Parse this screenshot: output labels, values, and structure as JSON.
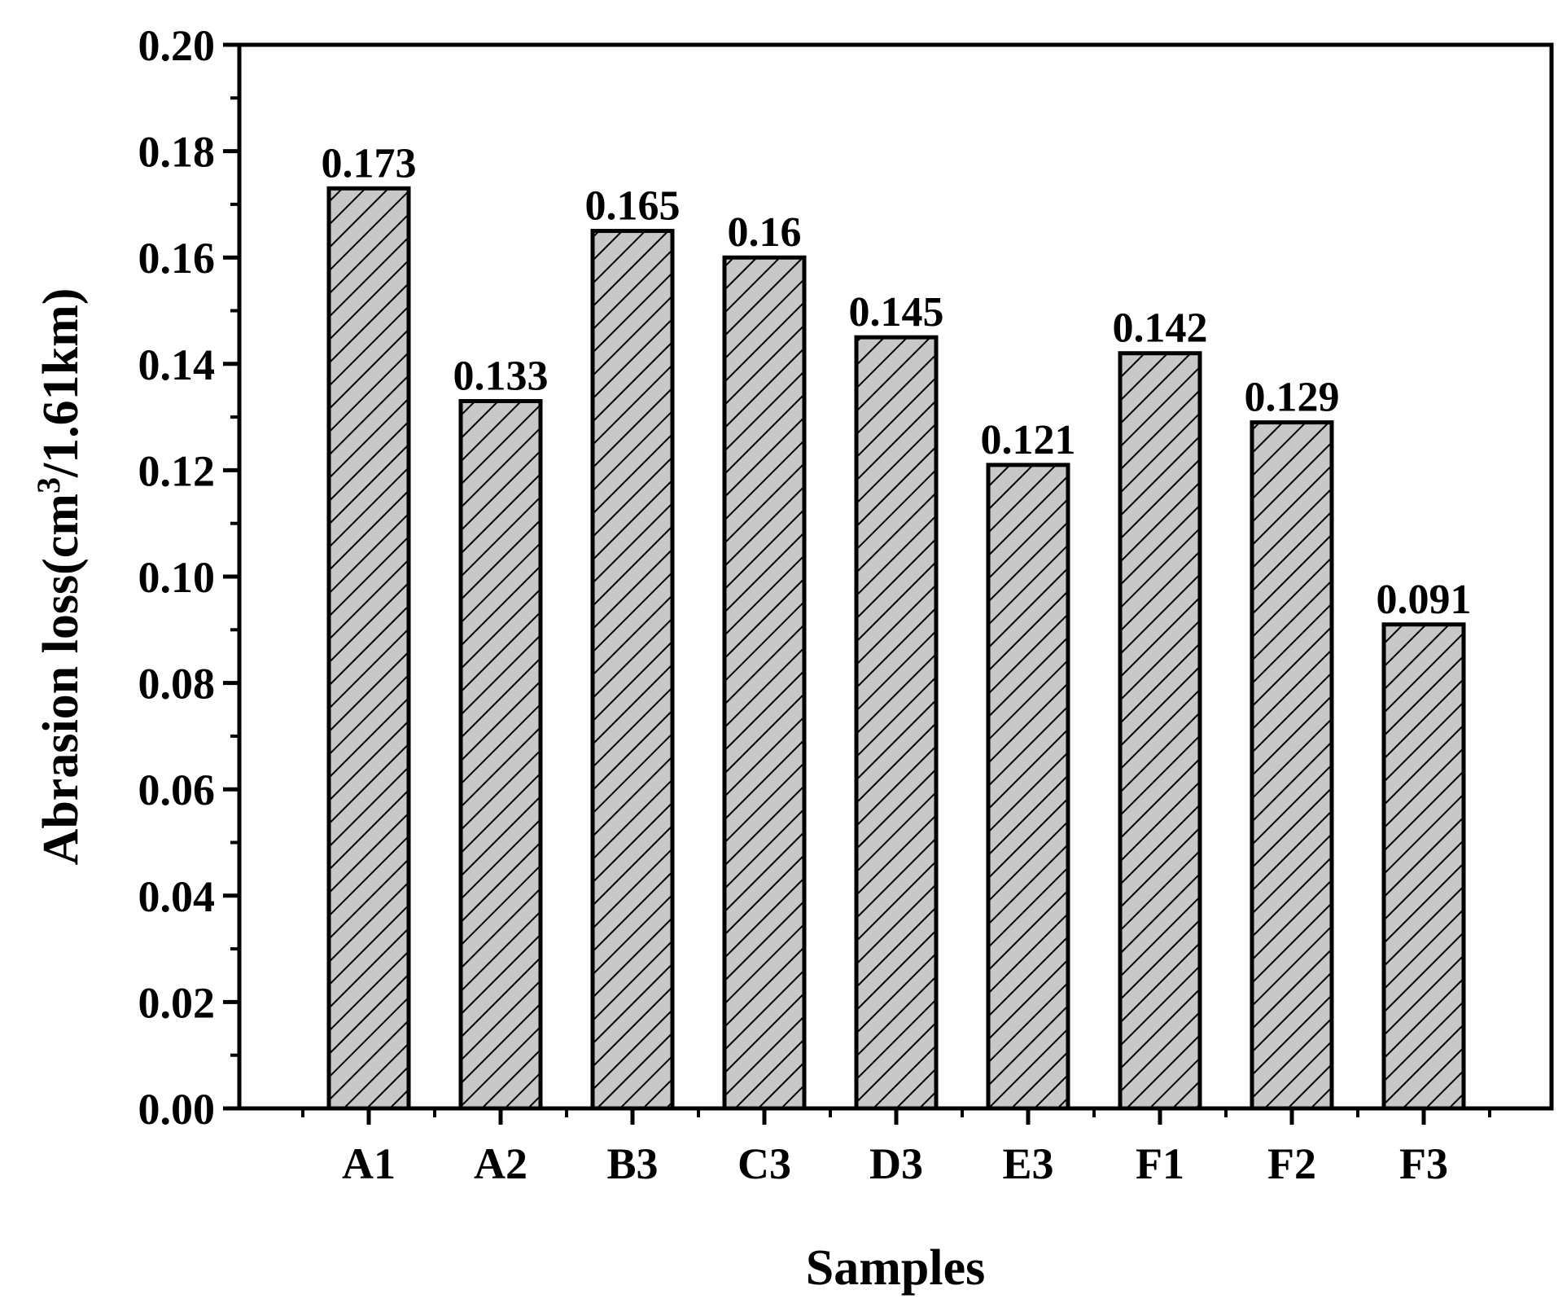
{
  "chart_data": {
    "type": "bar",
    "title": "",
    "xlabel": "Samples",
    "ylabel_main": "Abrasion loss(cm",
    "ylabel_sup": "3",
    "ylabel_tail": "/1.61km)",
    "categories": [
      "A1",
      "A2",
      "B3",
      "C3",
      "D3",
      "E3",
      "F1",
      "F2",
      "F3"
    ],
    "values": [
      0.173,
      0.133,
      0.165,
      0.16,
      0.145,
      0.121,
      0.142,
      0.129,
      0.091
    ],
    "value_labels": [
      "0.173",
      "0.133",
      "0.165",
      "0.16",
      "0.145",
      "0.121",
      "0.142",
      "0.129",
      "0.091"
    ],
    "ylim": [
      0,
      0.2
    ],
    "yticks": [
      "0.00",
      "0.02",
      "0.04",
      "0.06",
      "0.08",
      "0.10",
      "0.12",
      "0.14",
      "0.16",
      "0.18",
      "0.20"
    ],
    "grid": false,
    "bar_fill": "#c8c8c8",
    "hatch_color": "#000000",
    "hatch": "diagonal"
  }
}
